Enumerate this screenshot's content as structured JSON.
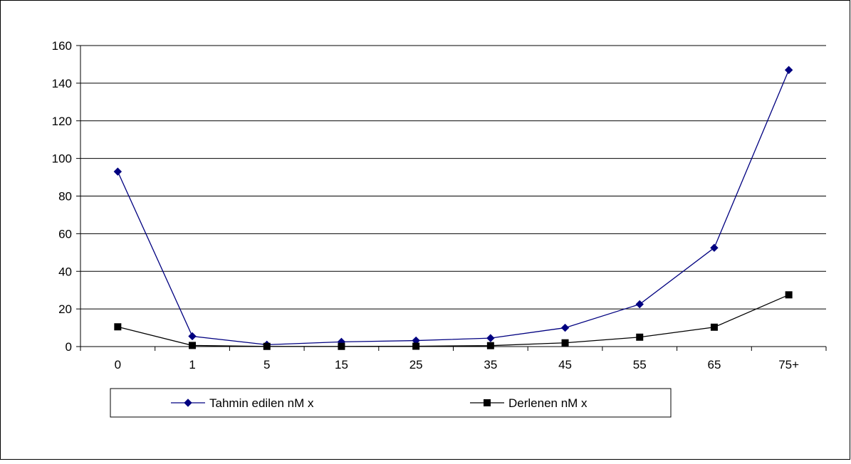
{
  "chart_data": {
    "type": "line",
    "categories": [
      "0",
      "1",
      "5",
      "15",
      "25",
      "35",
      "45",
      "55",
      "65",
      "75+"
    ],
    "y_ticks": [
      "0",
      "20",
      "40",
      "60",
      "80",
      "100",
      "120",
      "140",
      "160"
    ],
    "ylim": [
      0,
      160
    ],
    "grid": true,
    "legend_position": "bottom",
    "series": [
      {
        "name": "Tahmin edilen nM x",
        "marker": "diamond",
        "color": "#000080",
        "values": [
          93,
          5.5,
          1,
          2.5,
          3.2,
          4.5,
          10,
          22.5,
          52.5,
          147
        ]
      },
      {
        "name": "Derlenen nM x",
        "marker": "square",
        "color": "#000000",
        "values": [
          10.5,
          0.6,
          0.1,
          0.1,
          0.2,
          0.5,
          2,
          5,
          10.3,
          27.5
        ]
      }
    ]
  }
}
